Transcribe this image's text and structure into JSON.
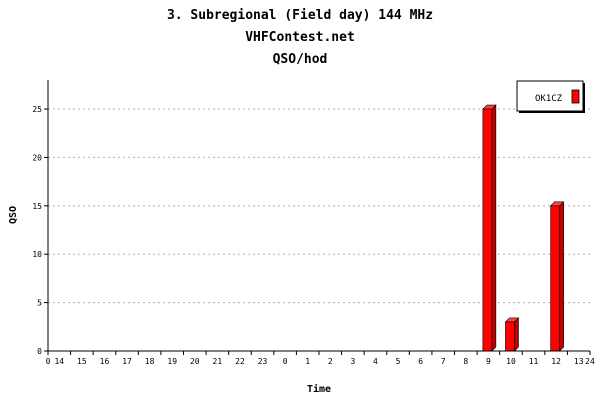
{
  "chart_data": {
    "type": "bar",
    "title": "3. Subregional (Field day) 144 MHz",
    "subtitle": "VHFContest.net",
    "subtitle2": "QSO/hod",
    "xlabel": "Time",
    "ylabel": "QSO",
    "ylim": [
      0,
      28
    ],
    "yticks": [
      0,
      5,
      10,
      15,
      20,
      25
    ],
    "x_start_label": "0",
    "x_end_label": "24",
    "categories": [
      "14",
      "15",
      "16",
      "17",
      "18",
      "19",
      "20",
      "21",
      "22",
      "23",
      "0",
      "1",
      "2",
      "3",
      "4",
      "5",
      "6",
      "7",
      "8",
      "9",
      "10",
      "11",
      "12",
      "13"
    ],
    "series": [
      {
        "name": "OK1CZ",
        "color": "#ff0000",
        "values": [
          0,
          0,
          0,
          0,
          0,
          0,
          0,
          0,
          0,
          0,
          0,
          0,
          0,
          0,
          0,
          0,
          0,
          0,
          0,
          25,
          3,
          0,
          15,
          0
        ]
      }
    ],
    "grid": true,
    "legend_position": "top-right"
  }
}
